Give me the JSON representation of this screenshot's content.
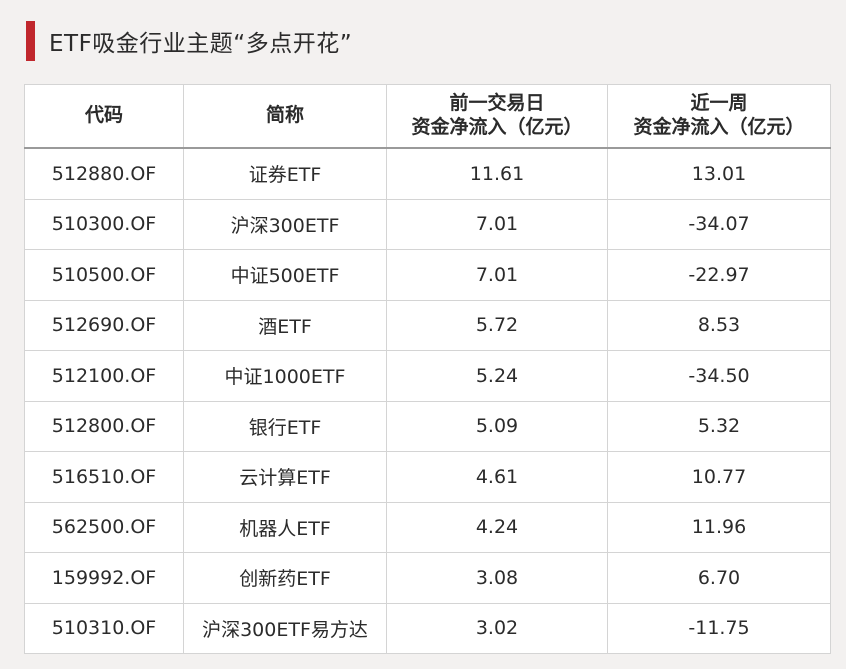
{
  "title": "ETF吸金行业主题“多点开花”",
  "colors": {
    "accent": "#c0272d",
    "background": "#f3f1f0"
  },
  "table": {
    "headers": [
      {
        "line1": "代码",
        "line2": ""
      },
      {
        "line1": "简称",
        "line2": ""
      },
      {
        "line1": "前一交易日",
        "line2": "资金净流入（亿元）"
      },
      {
        "line1": "近一周",
        "line2": "资金净流入（亿元）"
      }
    ],
    "rows": [
      [
        "512880.OF",
        "证券ETF",
        "11.61",
        "13.01"
      ],
      [
        "510300.OF",
        "沪深300ETF",
        "7.01",
        "-34.07"
      ],
      [
        "510500.OF",
        "中证500ETF",
        "7.01",
        "-22.97"
      ],
      [
        "512690.OF",
        "酒ETF",
        "5.72",
        "8.53"
      ],
      [
        "512100.OF",
        "中证1000ETF",
        "5.24",
        "-34.50"
      ],
      [
        "512800.OF",
        "银行ETF",
        "5.09",
        "5.32"
      ],
      [
        "516510.OF",
        "云计算ETF",
        "4.61",
        "10.77"
      ],
      [
        "562500.OF",
        "机器人ETF",
        "4.24",
        "11.96"
      ],
      [
        "159992.OF",
        "创新药ETF",
        "3.08",
        "6.70"
      ],
      [
        "510310.OF",
        "沪深300ETF易方达",
        "3.02",
        "-11.75"
      ]
    ]
  }
}
